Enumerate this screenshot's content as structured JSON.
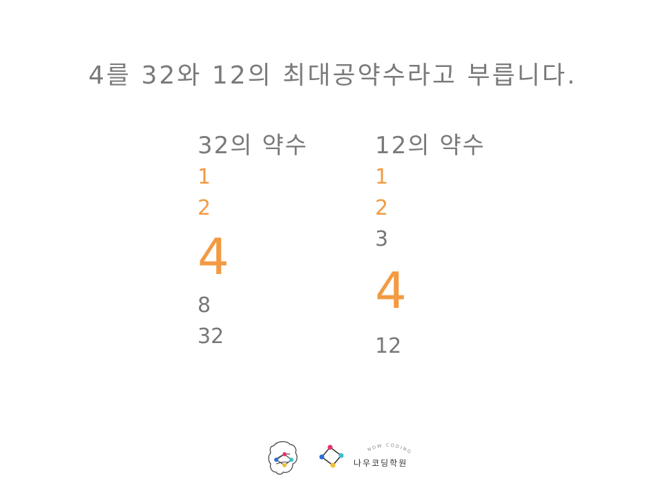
{
  "headline": "4를 32와 12의 최대공약수라고 부릅니다.",
  "columns": [
    {
      "title": "32의 약수",
      "divisors": [
        "1",
        "2",
        "4",
        "8",
        "32"
      ]
    },
    {
      "title": "12의 약수",
      "divisors": [
        "1",
        "2",
        "3",
        "4",
        "12"
      ]
    }
  ],
  "colors": {
    "highlight": "#f39a42",
    "text": "#777777"
  },
  "footer": {
    "brand_tagline": "NOW CODING",
    "brand_name": "나우코딩학원"
  }
}
